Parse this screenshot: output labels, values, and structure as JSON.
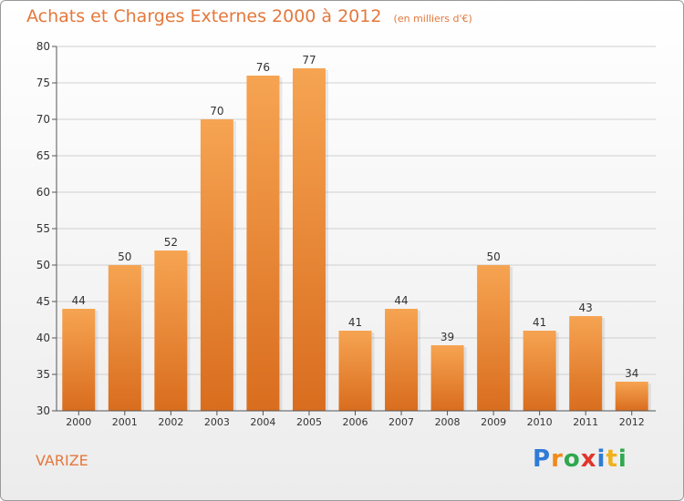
{
  "title": "Achats et Charges Externes 2000 à 2012",
  "unit": "(en milliers d'€)",
  "place": "VARIZE",
  "logo": {
    "letters": [
      "P",
      "r",
      "o",
      "x",
      "i",
      "t",
      "i"
    ],
    "colors": [
      "#2f7bd6",
      "#f08a1c",
      "#2fa84f",
      "#e0362c",
      "#2f7bd6",
      "#f0b21c",
      "#2fa84f"
    ]
  },
  "colors": {
    "accent": "#e4783c",
    "bar_top": "#f6a452",
    "bar_bottom": "#d96d1e",
    "grid": "#d0d0d0",
    "axis": "#555555"
  },
  "chart_data": {
    "type": "bar",
    "categories": [
      "2000",
      "2001",
      "2002",
      "2003",
      "2004",
      "2005",
      "2006",
      "2007",
      "2008",
      "2009",
      "2010",
      "2011",
      "2012"
    ],
    "values": [
      44,
      50,
      52,
      70,
      76,
      77,
      41,
      44,
      39,
      50,
      41,
      43,
      34
    ],
    "ylim": [
      30,
      80
    ],
    "yticks": [
      30,
      35,
      40,
      45,
      50,
      55,
      60,
      65,
      70,
      75,
      80
    ],
    "grid": true,
    "data_labels": true
  }
}
